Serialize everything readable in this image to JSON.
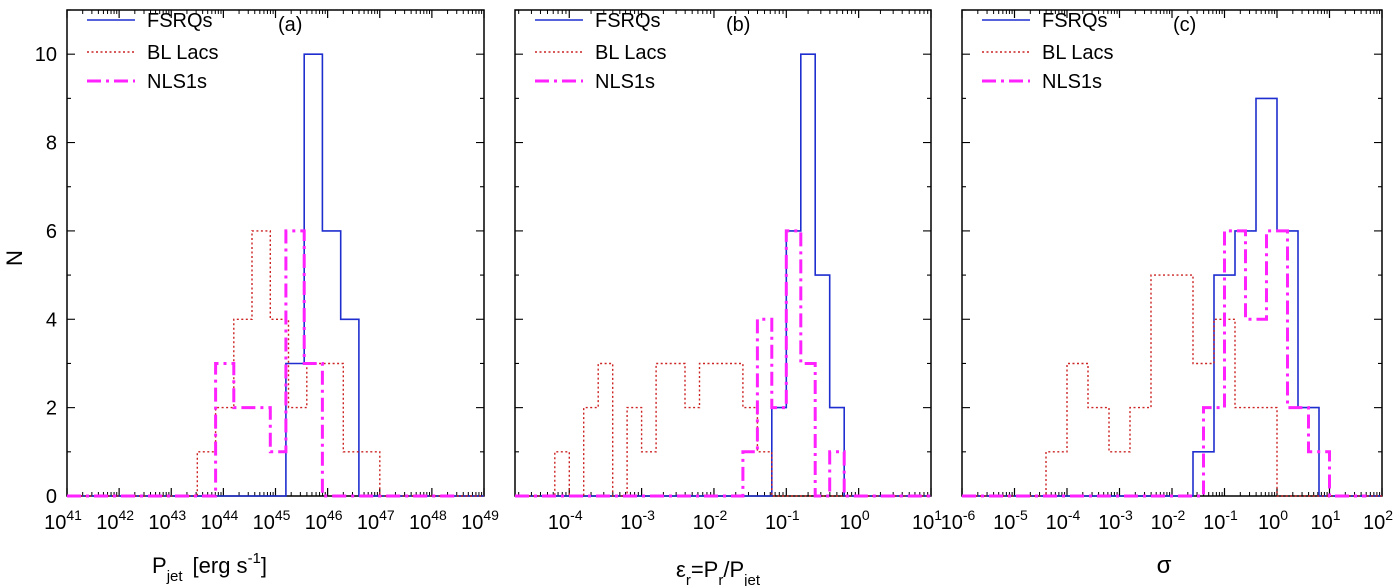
{
  "figure": {
    "ylabel": "N",
    "colors": {
      "fsrq": "#1f2fcf",
      "bllac": "#cc2222",
      "nls1": "#ff22ff"
    }
  },
  "chart_data": [
    {
      "type": "step-histogram",
      "panel_label": "(a)",
      "xlabel": "P",
      "xlabel_sub": "jet",
      "xlabel_unit": "[erg s",
      "xlabel_unit_sup": "-1",
      "xlabel_close": "]",
      "xscale": "log",
      "xlim_exp": [
        41,
        49
      ],
      "xticks": [
        {
          "e": 41,
          "m": "10",
          "s": "41"
        },
        {
          "e": 42,
          "m": "10",
          "s": "42"
        },
        {
          "e": 43,
          "m": "10",
          "s": "43"
        },
        {
          "e": 44,
          "m": "10",
          "s": "44"
        },
        {
          "e": 45,
          "m": "10",
          "s": "45"
        },
        {
          "e": 46,
          "m": "10",
          "s": "46"
        },
        {
          "e": 47,
          "m": "10",
          "s": "47"
        },
        {
          "e": 48,
          "m": "10",
          "s": "48"
        },
        {
          "e": 49,
          "m": "10",
          "s": "49"
        }
      ],
      "ylim": [
        0,
        11
      ],
      "yticks": [
        "0",
        "2",
        "4",
        "6",
        "8",
        "10"
      ],
      "legend": [
        "FSRQs",
        "BL Lacs",
        "NLS1s"
      ],
      "series": [
        {
          "name": "FSRQs",
          "key": "fsrq",
          "style": "solid",
          "edges": [
            45.2,
            45.55,
            45.9,
            46.25,
            46.6
          ],
          "counts": [
            3,
            10,
            6,
            4
          ],
          "base_to": 49
        },
        {
          "name": "BL Lacs",
          "key": "bllac",
          "style": "dotted",
          "edges": [
            41.6,
            43.5,
            43.85,
            44.2,
            44.55,
            44.9,
            45.25,
            45.6,
            45.95,
            46.3,
            46.65,
            47.0
          ],
          "counts": [
            0,
            1,
            2,
            4,
            6,
            4,
            2,
            3,
            3,
            1,
            1
          ],
          "base_to": 49
        },
        {
          "name": "NLS1s",
          "key": "nls1",
          "style": "dashdot",
          "edges": [
            43.4,
            43.85,
            44.2,
            44.55,
            44.9,
            45.2,
            45.55,
            45.9,
            46.25,
            46.6,
            47.0
          ],
          "counts": [
            0,
            3,
            2,
            2,
            1,
            6,
            3,
            0,
            0,
            0
          ],
          "base_to": 48.5
        }
      ]
    },
    {
      "type": "step-histogram",
      "panel_label": "(b)",
      "xlabel": "ε",
      "xlabel_sub": "r",
      "xlabel_mid": "=P",
      "xlabel_sub2": "r",
      "xlabel_mid2": "/P",
      "xlabel_sub3": "jet",
      "xscale": "log",
      "xlim_exp": [
        -4.75,
        1.0
      ],
      "xticks": [
        {
          "e": -4,
          "m": "10",
          "s": "-4"
        },
        {
          "e": -3,
          "m": "10",
          "s": "-3"
        },
        {
          "e": -2,
          "m": "10",
          "s": "-2"
        },
        {
          "e": -1,
          "m": "10",
          "s": "-1"
        },
        {
          "e": 0,
          "m": "10",
          "s": "0"
        },
        {
          "e": 1,
          "m": "10",
          "s": "1"
        }
      ],
      "ylim": [
        0,
        11
      ],
      "yticks": [],
      "legend": [
        "FSRQs",
        "BL Lacs",
        "NLS1s"
      ],
      "series": [
        {
          "name": "FSRQs",
          "key": "fsrq",
          "style": "solid",
          "edges": [
            -1.2,
            -1.0,
            -0.8,
            -0.6,
            -0.4,
            -0.2
          ],
          "counts": [
            2,
            6,
            10,
            5,
            2
          ],
          "base_to": 1.0
        },
        {
          "name": "BL Lacs",
          "key": "bllac",
          "style": "dotted",
          "edges": [
            -4.2,
            -4.0,
            -3.8,
            -3.6,
            -3.4,
            -3.2,
            -3.0,
            -2.8,
            -2.6,
            -2.4,
            -2.2,
            -2.0,
            -1.8,
            -1.6,
            -1.4,
            -1.2,
            -1.0,
            -0.8,
            -0.6
          ],
          "counts": [
            1,
            0,
            2,
            3,
            0,
            2,
            1,
            3,
            3,
            2,
            3,
            3,
            3,
            2,
            1,
            0,
            0,
            0
          ],
          "base_to": 1.0
        },
        {
          "name": "NLS1s",
          "key": "nls1",
          "style": "dashdot",
          "edges": [
            -1.6,
            -1.4,
            -1.2,
            -1.0,
            -0.8,
            -0.6,
            -0.4,
            -0.2,
            0.0
          ],
          "counts": [
            1,
            4,
            2,
            6,
            3,
            0,
            1,
            0
          ],
          "base_to": 1.0
        }
      ]
    },
    {
      "type": "step-histogram",
      "panel_label": "(c)",
      "xlabel": "σ",
      "xscale": "log",
      "xlim_exp": [
        -6,
        2
      ],
      "xticks": [
        {
          "e": -6,
          "m": "10",
          "s": "-6"
        },
        {
          "e": -5,
          "m": "10",
          "s": "-5"
        },
        {
          "e": -4,
          "m": "10",
          "s": "-4"
        },
        {
          "e": -3,
          "m": "10",
          "s": "-3"
        },
        {
          "e": -2,
          "m": "10",
          "s": "-2"
        },
        {
          "e": -1,
          "m": "10",
          "s": "-1"
        },
        {
          "e": 0,
          "m": "10",
          "s": "0"
        },
        {
          "e": 1,
          "m": "10",
          "s": "1"
        },
        {
          "e": 2,
          "m": "10",
          "s": "2"
        }
      ],
      "ylim": [
        0,
        11
      ],
      "yticks": [],
      "legend": [
        "FSRQs",
        "BL Lacs",
        "NLS1s"
      ],
      "series": [
        {
          "name": "FSRQs",
          "key": "fsrq",
          "style": "solid",
          "edges": [
            -1.6,
            -1.2,
            -0.8,
            -0.4,
            0.0,
            0.4,
            0.8
          ],
          "counts": [
            1,
            5,
            6,
            9,
            6,
            2
          ],
          "base_to": 2.0
        },
        {
          "name": "BL Lacs",
          "key": "bllac",
          "style": "dotted",
          "edges": [
            -5.2,
            -4.4,
            -4.0,
            -3.6,
            -3.2,
            -2.8,
            -2.4,
            -1.6,
            -1.2,
            -0.8,
            -0.4,
            0.0,
            0.4
          ],
          "counts": [
            0,
            1,
            3,
            2,
            1,
            2,
            5,
            3,
            4,
            2,
            2,
            0
          ],
          "base_to": 2.0
        },
        {
          "name": "NLS1s",
          "key": "nls1",
          "style": "dashdot",
          "edges": [
            -1.4,
            -1.0,
            -0.6,
            -0.2,
            0.2,
            0.6,
            1.0,
            1.4
          ],
          "counts": [
            2,
            6,
            4,
            6,
            2,
            1,
            0
          ],
          "base_to": 1.7
        }
      ]
    }
  ]
}
